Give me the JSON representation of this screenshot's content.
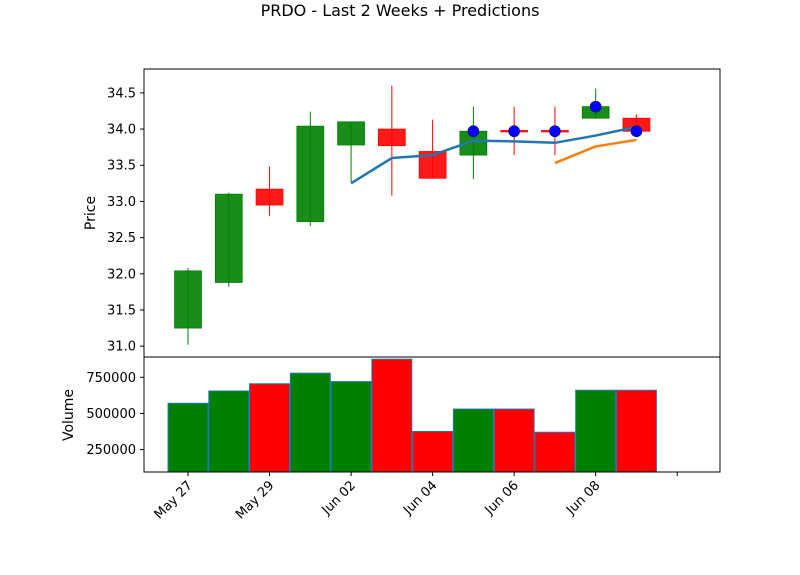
{
  "figure": {
    "title": "PRDO - Last 2 Weeks + Predictions"
  },
  "chart_data": [
    {
      "type": "candlestick",
      "ylabel": "Price",
      "ylim": [
        30.85,
        34.83
      ],
      "yticks": [
        31.0,
        31.5,
        32.0,
        32.5,
        33.0,
        33.5,
        34.0,
        34.5
      ],
      "candles": [
        {
          "x": 0,
          "open": 31.25,
          "close": 32.04,
          "high": 32.08,
          "low": 31.02,
          "color": "#008000"
        },
        {
          "x": 1,
          "open": 31.88,
          "close": 33.1,
          "high": 33.12,
          "low": 31.82,
          "color": "#008000"
        },
        {
          "x": 2,
          "open": 33.17,
          "close": 32.95,
          "high": 33.48,
          "low": 32.8,
          "color": "#ff0000"
        },
        {
          "x": 3,
          "open": 32.72,
          "close": 34.04,
          "high": 34.24,
          "low": 32.66,
          "color": "#008000"
        },
        {
          "x": 4,
          "open": 33.78,
          "close": 34.1,
          "high": 34.1,
          "low": 33.27,
          "color": "#008000"
        },
        {
          "x": 5,
          "open": 34.0,
          "close": 33.77,
          "high": 34.6,
          "low": 33.08,
          "color": "#ff0000"
        },
        {
          "x": 6,
          "open": 33.69,
          "close": 33.32,
          "high": 34.13,
          "low": 33.32,
          "color": "#ff0000"
        },
        {
          "x": 7,
          "open": 33.64,
          "close": 33.97,
          "high": 34.31,
          "low": 33.31,
          "color": "#008000"
        },
        {
          "x": 8,
          "open": 33.98,
          "close": 33.96,
          "high": 34.31,
          "low": 33.64,
          "color": "#ff0000"
        },
        {
          "x": 9,
          "open": 33.98,
          "close": 33.96,
          "high": 34.31,
          "low": 33.64,
          "color": "#ff0000"
        },
        {
          "x": 10,
          "open": 34.15,
          "close": 34.31,
          "high": 34.56,
          "low": 34.15,
          "color": "#008000"
        },
        {
          "x": 11,
          "open": 34.15,
          "close": 33.97,
          "high": 34.2,
          "low": 33.97,
          "color": "#ff0000"
        }
      ],
      "series": [
        {
          "color": "#1f77b4",
          "x": [
            4,
            5,
            6,
            7,
            8,
            9,
            10,
            11
          ],
          "values": [
            33.25,
            33.6,
            33.64,
            33.84,
            33.83,
            33.81,
            33.91,
            34.03
          ]
        },
        {
          "color": "#ff7f0e",
          "x": [
            9,
            10,
            11
          ],
          "values": [
            33.53,
            33.76,
            33.85
          ]
        }
      ],
      "markers": {
        "color": "#0000ff",
        "x": [
          7,
          8,
          9,
          10,
          11
        ],
        "values": [
          33.97,
          33.97,
          33.97,
          34.31,
          33.97
        ]
      }
    },
    {
      "type": "bar",
      "ylabel": "Volume",
      "ylim": [
        95000,
        890000
      ],
      "yticks": [
        250000,
        500000,
        750000
      ],
      "ytick_labels": [
        "250000",
        "500000",
        "750000"
      ],
      "bars": [
        {
          "x": 0,
          "value": 570000,
          "color": "#008000"
        },
        {
          "x": 1,
          "value": 655000,
          "color": "#008000"
        },
        {
          "x": 2,
          "value": 705000,
          "color": "#ff0000"
        },
        {
          "x": 3,
          "value": 778000,
          "color": "#008000"
        },
        {
          "x": 4,
          "value": 720000,
          "color": "#008000"
        },
        {
          "x": 5,
          "value": 875000,
          "color": "#ff0000"
        },
        {
          "x": 6,
          "value": 375000,
          "color": "#ff0000"
        },
        {
          "x": 7,
          "value": 530000,
          "color": "#008000"
        },
        {
          "x": 8,
          "value": 530000,
          "color": "#ff0000"
        },
        {
          "x": 9,
          "value": 370000,
          "color": "#ff0000"
        },
        {
          "x": 10,
          "value": 660000,
          "color": "#008000"
        },
        {
          "x": 11,
          "value": 660000,
          "color": "#ff0000"
        }
      ],
      "xlim": [
        -1.08,
        13.05
      ],
      "xticks": [
        0,
        2,
        4,
        6,
        8,
        10,
        12
      ],
      "xtick_labels": [
        "May 27",
        "May 29",
        "Jun 02",
        "Jun 04",
        "Jun 06",
        "Jun 08",
        ""
      ]
    }
  ]
}
